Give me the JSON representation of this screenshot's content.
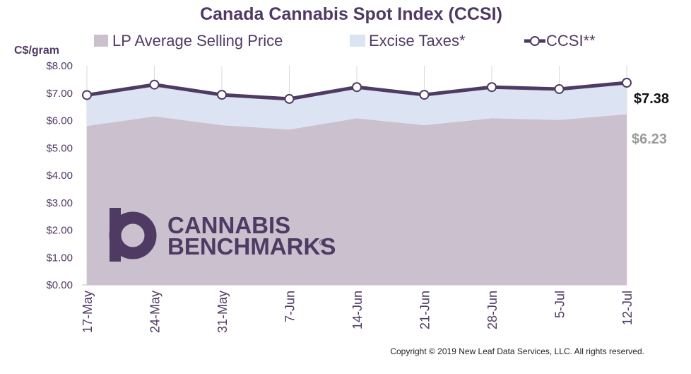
{
  "chart_data": {
    "type": "area",
    "title": "Canada Cannabis Spot Index (CCSI)",
    "ylabel": "C$/gram",
    "xlabel": "",
    "ylim": [
      0,
      8
    ],
    "yticks": [
      "$0.00",
      "$1.00",
      "$2.00",
      "$3.00",
      "$4.00",
      "$5.00",
      "$6.00",
      "$7.00",
      "$8.00"
    ],
    "categories": [
      "17-May",
      "24-May",
      "31-May",
      "7-Jun",
      "14-Jun",
      "21-Jun",
      "28-Jun",
      "5-Jul",
      "12-Jul"
    ],
    "series": [
      {
        "name": "LP Average Selling Price",
        "kind": "area",
        "color": "#cbc0cd",
        "values": [
          5.8,
          6.15,
          5.83,
          5.67,
          6.08,
          5.83,
          6.08,
          6.02,
          6.23
        ]
      },
      {
        "name": "Excise Taxes*",
        "kind": "stacked-area-top",
        "color": "#dce3f2",
        "values": [
          6.93,
          7.31,
          6.94,
          6.79,
          7.22,
          6.94,
          7.22,
          7.15,
          7.38
        ]
      },
      {
        "name": "CCSI**",
        "kind": "line",
        "color": "#4f3a63",
        "values": [
          6.93,
          7.31,
          6.94,
          6.79,
          7.22,
          6.94,
          7.22,
          7.15,
          7.38
        ]
      }
    ],
    "end_labels": {
      "ccsi": "$7.38",
      "lp": "$6.23"
    },
    "grid": "vertical",
    "legend": "top"
  },
  "logo": {
    "line1": "CANNABIS",
    "line2": "BENCHMARKS",
    "mark": "®"
  },
  "copyright": "Copyright © 2019 New Leaf Data Services, LLC. All rights reserved."
}
